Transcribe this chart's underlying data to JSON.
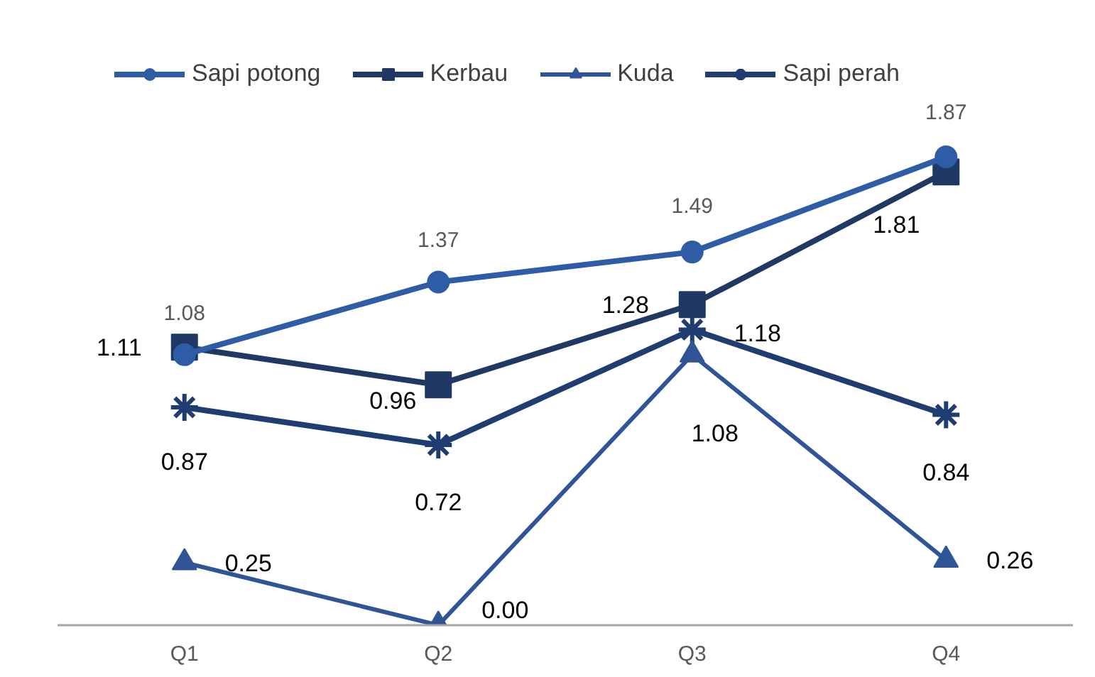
{
  "chart_data": {
    "type": "line",
    "categories": [
      "Q1",
      "Q2",
      "Q3",
      "Q4"
    ],
    "tick_labels": "x",
    "legend": "top",
    "line_style": "solid",
    "series": [
      {
        "name": "Sapi potong",
        "color": "#2e5ca6",
        "marker": "circle",
        "values": [
          1.08,
          1.37,
          1.49,
          1.87
        ],
        "value_labels": [
          "1.08",
          "1.37",
          "1.49",
          "1.87"
        ]
      },
      {
        "name": "Kerbau",
        "color": "#1f3864",
        "marker": "square",
        "values": [
          1.11,
          0.96,
          1.28,
          1.81
        ],
        "value_labels": [
          "1.11",
          "0.96",
          "1.28",
          "1.81"
        ]
      },
      {
        "name": "Kuda",
        "color": "#2f5597",
        "marker": "triangle",
        "values": [
          0.25,
          0.0,
          1.08,
          0.26
        ],
        "value_labels": [
          "0.25",
          "0.00",
          "1.08",
          "0.26"
        ]
      },
      {
        "name": "Sapi perah",
        "color": "#203d72",
        "marker": "cross",
        "values": [
          0.87,
          0.72,
          1.18,
          0.84
        ],
        "value_labels": [
          "0.87",
          "0.72",
          "1.18",
          "0.84"
        ]
      }
    ]
  }
}
